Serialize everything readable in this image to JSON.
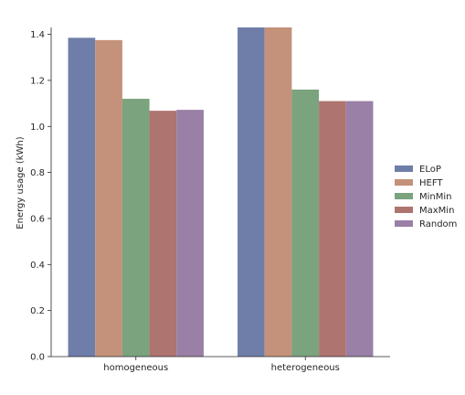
{
  "chart_data": {
    "type": "bar",
    "ylabel": "Energy usage (kWh)",
    "xlabel": "",
    "ylim": [
      0,
      1.43
    ],
    "yticks": [
      0.0,
      0.2,
      0.4,
      0.6,
      0.8,
      1.0,
      1.2,
      1.4
    ],
    "ytick_labels": [
      "0.0",
      "0.2",
      "0.4",
      "0.6",
      "0.8",
      "1.0",
      "1.2",
      "1.4"
    ],
    "categories": [
      "homogeneous",
      "heterogeneous"
    ],
    "series": [
      {
        "name": "ELoP",
        "color": "#6e7ea8",
        "values": [
          1.385,
          1.43
        ]
      },
      {
        "name": "HEFT",
        "color": "#c4917a",
        "values": [
          1.375,
          1.43
        ]
      },
      {
        "name": "MinMin",
        "color": "#7aa37e",
        "values": [
          1.12,
          1.16
        ]
      },
      {
        "name": "MaxMin",
        "color": "#ae746f",
        "values": [
          1.068,
          1.11
        ]
      },
      {
        "name": "Random",
        "color": "#9a7fa6",
        "values": [
          1.072,
          1.11
        ]
      }
    ],
    "legend_position": "right",
    "grid": false
  }
}
